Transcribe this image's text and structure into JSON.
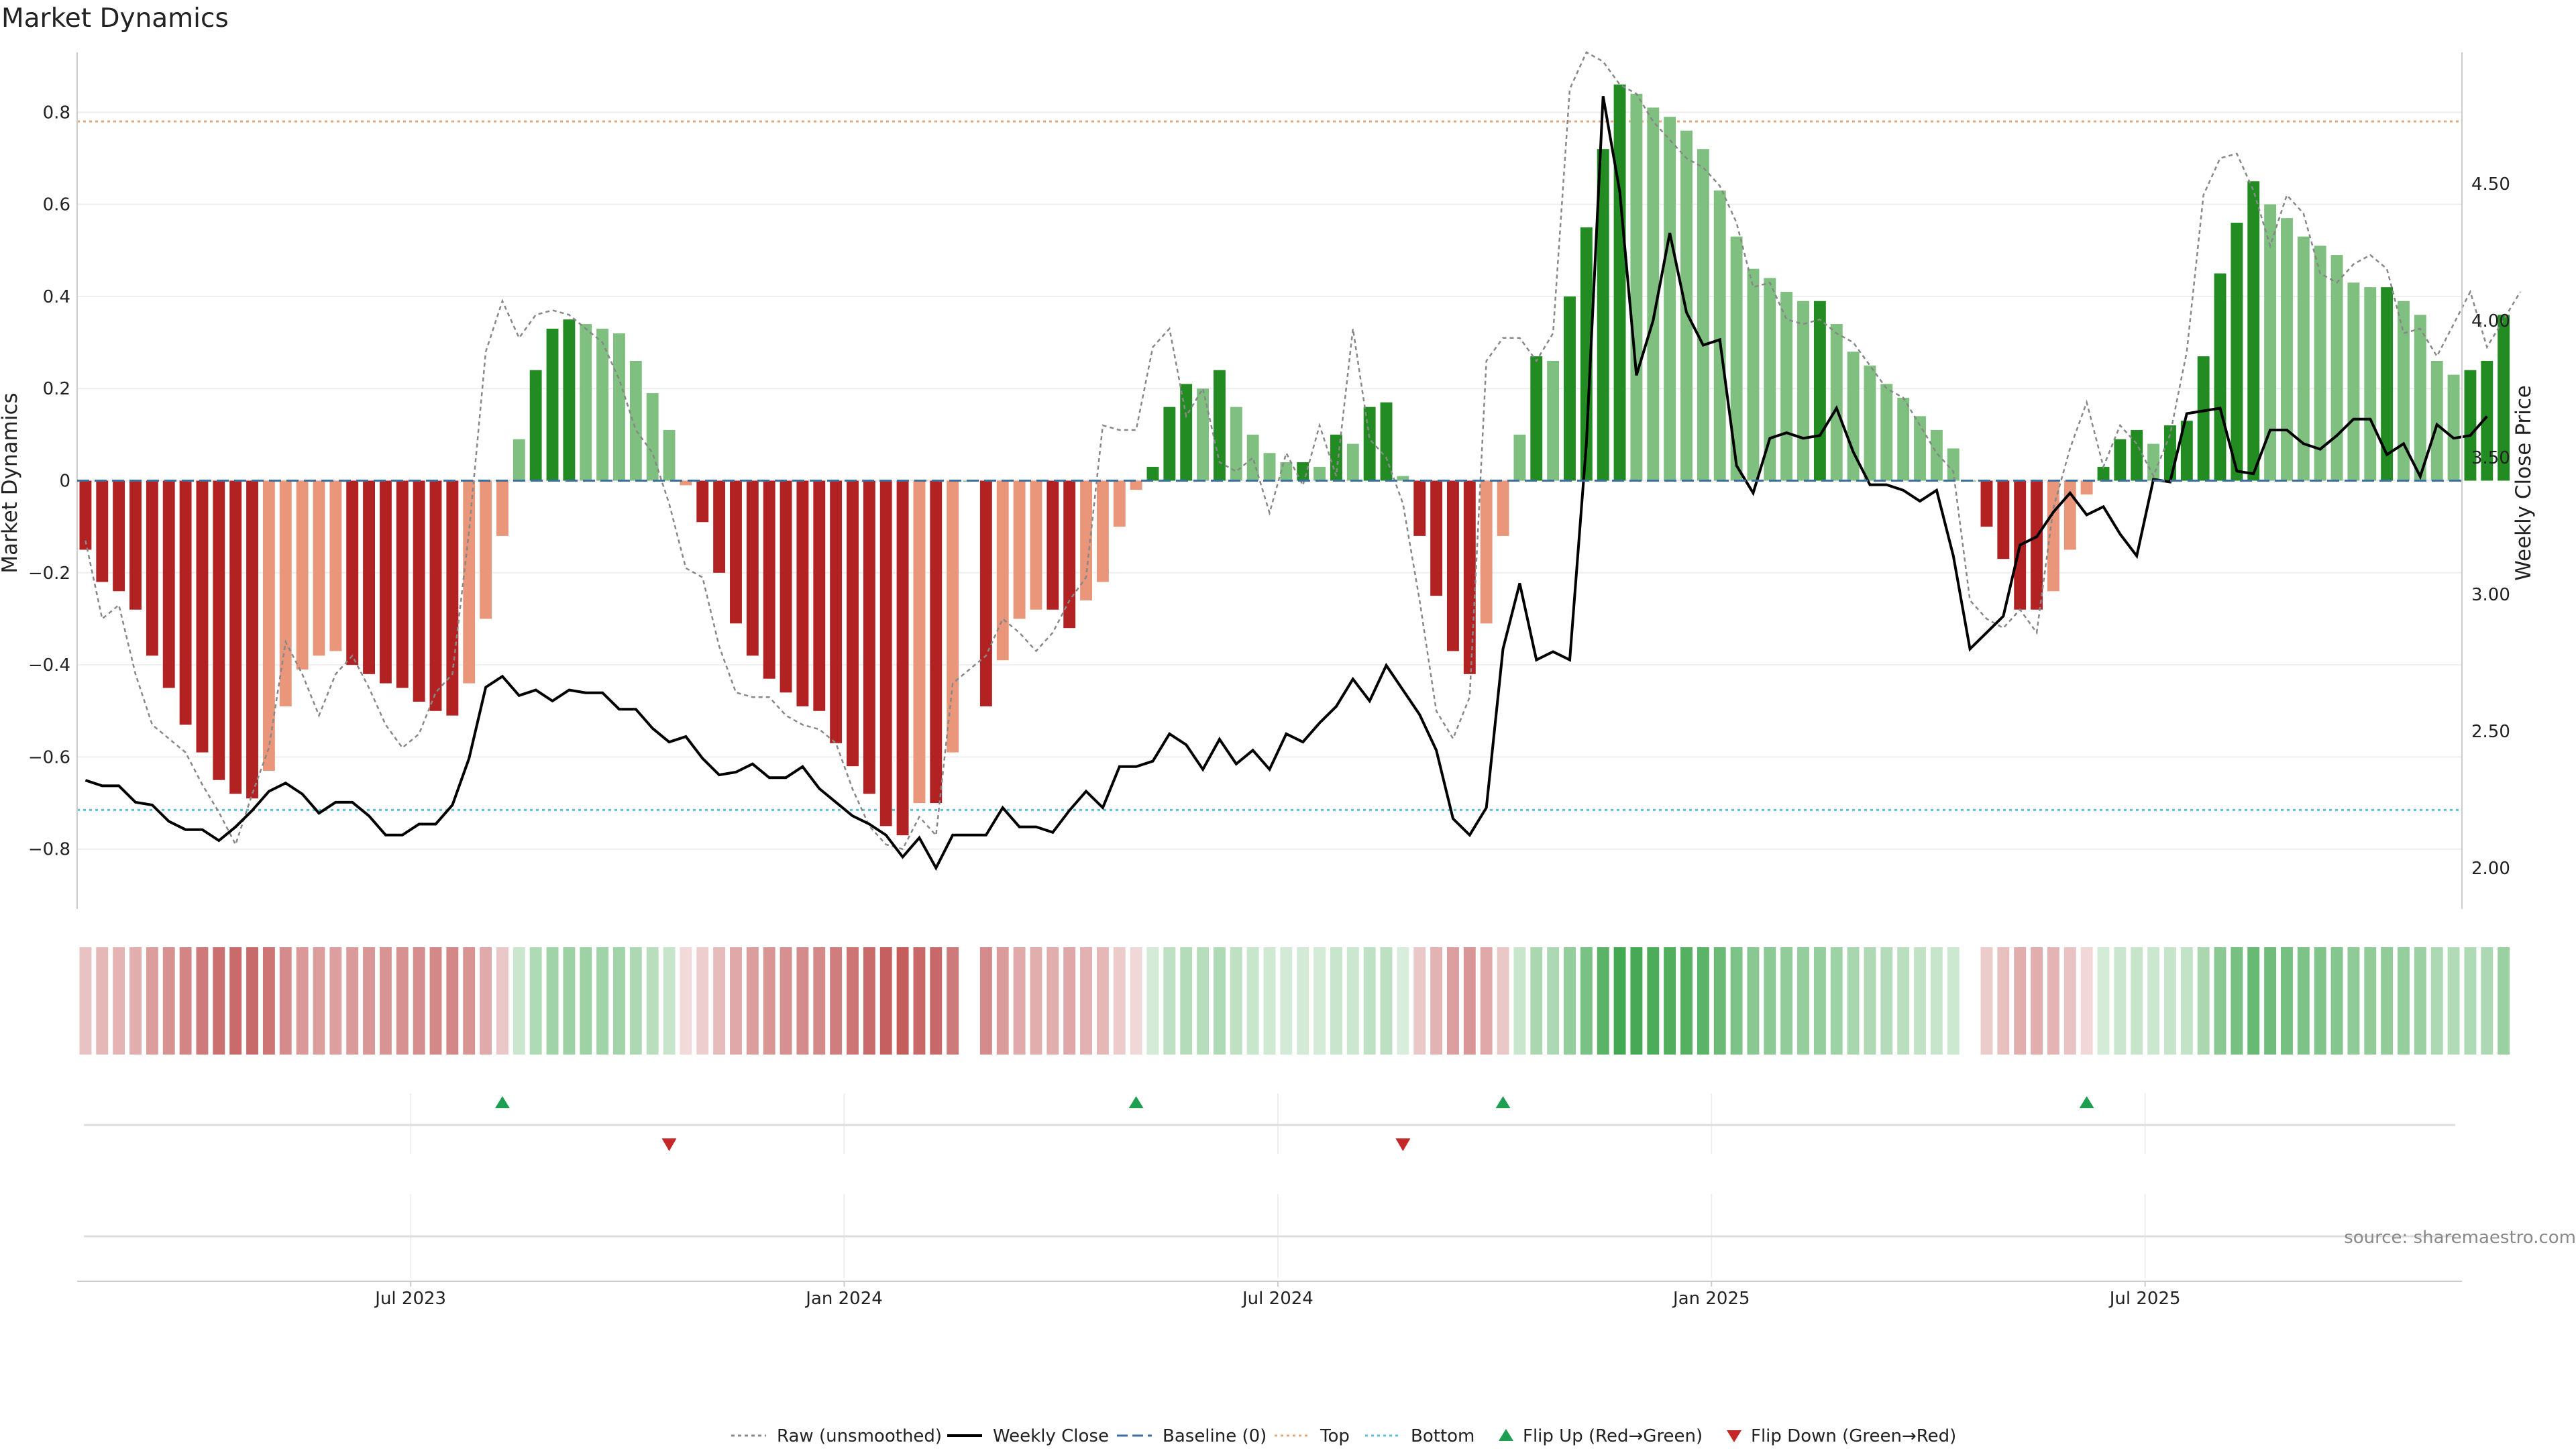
{
  "chart_data": {
    "type": "bar",
    "title": "Market Dynamics",
    "ylabel_left": "Market Dynamics",
    "ylabel_right": "Weekly Close Price",
    "ylim_left": [
      -0.93,
      0.93
    ],
    "ylim_right": [
      1.85,
      4.98
    ],
    "yticks_left": [
      -0.8,
      -0.6,
      -0.4,
      -0.2,
      0,
      0.2,
      0.4,
      0.6,
      0.8
    ],
    "yticks_left_labels": [
      "−0.8",
      "−0.6",
      "−0.4",
      "−0.2",
      "0",
      "0.2",
      "0.4",
      "0.6",
      "0.8"
    ],
    "yticks_right": [
      2.0,
      2.5,
      3.0,
      3.5,
      4.0,
      4.5
    ],
    "yticks_right_labels": [
      "2.00",
      "2.50",
      "3.00",
      "3.50",
      "4.00",
      "4.50"
    ],
    "top_threshold": 0.78,
    "bottom_threshold": -0.715,
    "baseline": 0,
    "weeks": 143,
    "start_date": "2023-02-06",
    "xticks": [
      {
        "label": "Jul 2023",
        "week": 20
      },
      {
        "label": "Jan 2024",
        "week": 46
      },
      {
        "label": "Jul 2024",
        "week": 72
      },
      {
        "label": "Jan 2025",
        "week": 98
      },
      {
        "label": "Jul 2025",
        "week": 124
      }
    ],
    "smoothed": [
      -0.15,
      -0.22,
      -0.24,
      -0.28,
      -0.38,
      -0.45,
      -0.53,
      -0.59,
      -0.65,
      -0.68,
      -0.69,
      -0.63,
      -0.49,
      -0.41,
      -0.38,
      -0.37,
      -0.4,
      -0.42,
      -0.44,
      -0.45,
      -0.48,
      -0.5,
      -0.51,
      -0.44,
      -0.3,
      -0.12,
      0.09,
      0.24,
      0.33,
      0.35,
      0.34,
      0.33,
      0.32,
      0.26,
      0.19,
      0.11,
      -0.01,
      -0.09,
      -0.2,
      -0.31,
      -0.38,
      -0.43,
      -0.46,
      -0.49,
      -0.5,
      -0.57,
      -0.62,
      -0.68,
      -0.75,
      -0.77,
      -0.7,
      -0.7,
      -0.59,
      0.0,
      -0.49,
      -0.39,
      -0.3,
      -0.28,
      -0.28,
      -0.32,
      -0.26,
      -0.22,
      -0.1,
      -0.02,
      0.03,
      0.16,
      0.21,
      0.2,
      0.24,
      0.16,
      0.1,
      0.06,
      0.04,
      0.04,
      0.03,
      0.1,
      0.08,
      0.16,
      0.17,
      0.01,
      -0.12,
      -0.25,
      -0.37,
      -0.42,
      -0.31,
      -0.12,
      0.1,
      0.27,
      0.26,
      0.4,
      0.55,
      0.72,
      0.86,
      0.84,
      0.81,
      0.79,
      0.76,
      0.72,
      0.63,
      0.53,
      0.46,
      0.44,
      0.41,
      0.39,
      0.39,
      0.34,
      0.28,
      0.25,
      0.21,
      0.18,
      0.14,
      0.11,
      0.07,
      0.0,
      -0.1,
      -0.17,
      -0.28,
      -0.28,
      -0.24,
      -0.15,
      -0.03,
      0.03,
      0.09,
      0.11,
      0.08,
      0.12,
      0.13,
      0.27,
      0.45,
      0.56,
      0.65,
      0.6,
      0.57,
      0.53,
      0.51,
      0.49,
      0.43,
      0.42,
      0.42,
      0.39,
      0.36,
      0.26,
      0.23,
      0.24,
      0.26,
      0.36
    ],
    "raw": [
      -0.13,
      -0.3,
      -0.27,
      -0.42,
      -0.53,
      -0.56,
      -0.59,
      -0.66,
      -0.72,
      -0.79,
      -0.68,
      -0.58,
      -0.35,
      -0.42,
      -0.51,
      -0.42,
      -0.38,
      -0.45,
      -0.53,
      -0.58,
      -0.55,
      -0.46,
      -0.42,
      -0.11,
      0.28,
      0.39,
      0.31,
      0.36,
      0.37,
      0.36,
      0.33,
      0.3,
      0.22,
      0.11,
      0.06,
      -0.05,
      -0.19,
      -0.21,
      -0.36,
      -0.46,
      -0.47,
      -0.47,
      -0.51,
      -0.53,
      -0.54,
      -0.57,
      -0.67,
      -0.75,
      -0.79,
      -0.8,
      -0.73,
      -0.77,
      -0.44,
      -0.41,
      -0.38,
      -0.3,
      -0.33,
      -0.37,
      -0.33,
      -0.26,
      -0.21,
      0.12,
      0.11,
      0.11,
      0.29,
      0.33,
      0.14,
      0.2,
      0.04,
      0.02,
      0.05,
      -0.07,
      0.06,
      -0.01,
      0.12,
      0.01,
      0.33,
      0.09,
      0.05,
      -0.05,
      -0.26,
      -0.5,
      -0.56,
      -0.47,
      0.26,
      0.31,
      0.31,
      0.26,
      0.32,
      0.85,
      0.93,
      0.91,
      0.86,
      0.84,
      0.78,
      0.74,
      0.7,
      0.68,
      0.64,
      0.56,
      0.42,
      0.43,
      0.35,
      0.34,
      0.35,
      0.32,
      0.3,
      0.25,
      0.2,
      0.18,
      0.12,
      0.06,
      0.02,
      -0.26,
      -0.3,
      -0.32,
      -0.28,
      -0.33,
      -0.06,
      0.07,
      0.17,
      0.03,
      0.12,
      0.08,
      0.01,
      0.1,
      0.28,
      0.62,
      0.7,
      0.71,
      0.63,
      0.51,
      0.62,
      0.58,
      0.45,
      0.43,
      0.47,
      0.49,
      0.46,
      0.32,
      0.33,
      0.27,
      0.34,
      0.41,
      0.29,
      0.35,
      0.41
    ],
    "close": [
      2.32,
      2.3,
      2.3,
      2.24,
      2.23,
      2.17,
      2.14,
      2.14,
      2.1,
      2.15,
      2.21,
      2.28,
      2.31,
      2.27,
      2.2,
      2.24,
      2.24,
      2.19,
      2.12,
      2.12,
      2.16,
      2.16,
      2.23,
      2.4,
      2.66,
      2.7,
      2.63,
      2.65,
      2.61,
      2.65,
      2.64,
      2.64,
      2.58,
      2.58,
      2.51,
      2.46,
      2.48,
      2.4,
      2.34,
      2.35,
      2.38,
      2.33,
      2.33,
      2.37,
      2.29,
      2.24,
      2.19,
      2.16,
      2.12,
      2.04,
      2.11,
      2.0,
      2.12,
      2.12,
      2.12,
      2.22,
      2.15,
      2.15,
      2.13,
      2.21,
      2.28,
      2.22,
      2.37,
      2.37,
      2.39,
      2.49,
      2.45,
      2.36,
      2.47,
      2.38,
      2.43,
      2.36,
      2.49,
      2.46,
      2.53,
      2.59,
      2.69,
      2.61,
      2.74,
      2.65,
      2.56,
      2.43,
      2.18,
      2.12,
      2.22,
      2.8,
      3.04,
      2.76,
      2.79,
      2.76,
      3.55,
      4.82,
      4.47,
      3.8,
      4.0,
      4.32,
      4.03,
      3.91,
      3.93,
      3.47,
      3.37,
      3.57,
      3.59,
      3.57,
      3.58,
      3.68,
      3.52,
      3.4,
      3.4,
      3.38,
      3.34,
      3.38,
      3.14,
      2.8,
      2.86,
      2.92,
      3.18,
      3.21,
      3.3,
      3.37,
      3.29,
      3.32,
      3.22,
      3.14,
      3.42,
      3.41,
      3.66,
      3.67,
      3.68,
      3.45,
      3.44,
      3.6,
      3.6,
      3.55,
      3.53,
      3.58,
      3.64,
      3.64,
      3.51,
      3.55,
      3.43,
      3.62,
      3.57,
      3.58,
      3.65
    ]
  },
  "legend": [
    {
      "label": "Raw (unsmoothed)",
      "symbol": "dotted-line"
    },
    {
      "label": "Weekly Close",
      "symbol": "solid-line"
    },
    {
      "label": "Baseline (0)",
      "symbol": "dashed-line"
    },
    {
      "label": "Top",
      "symbol": "dotted-line"
    },
    {
      "label": "Bottom",
      "symbol": "dotted-line"
    },
    {
      "label": "Flip Up (Red→Green)",
      "symbol": "up-triangle"
    },
    {
      "label": "Flip Down (Green→Red)",
      "symbol": "down-triangle"
    }
  ],
  "source": "source: sharemaestro.com",
  "colors": {
    "red_strong": "#b22222",
    "red_light": "#e9967a",
    "green_strong": "#228b22",
    "green_light": "#7fbf7f",
    "close_line": "#000000",
    "raw_line": "#888888",
    "baseline": "#3b6fa0",
    "top_line": "#e2a77a",
    "bottom_line": "#5bc0de",
    "flip_up": "#1e9e50",
    "flip_down": "#c62828"
  }
}
